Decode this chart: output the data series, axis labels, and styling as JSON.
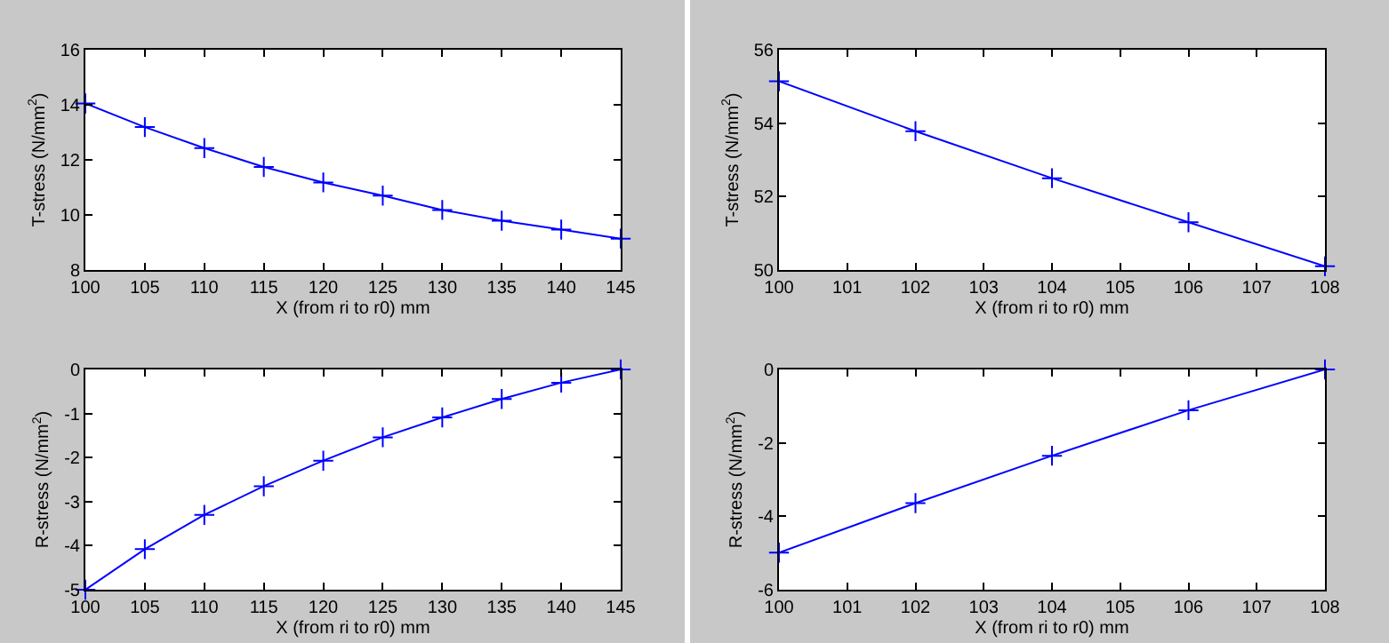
{
  "chart_data": [
    {
      "type": "line",
      "ylabel": "T-stress (N/mm$^{2}$)",
      "xlabel": "X (from ri to r0) mm",
      "x": [
        100,
        105,
        110,
        115,
        120,
        125,
        130,
        135,
        140,
        145
      ],
      "series": [
        {
          "color": "#0000ff",
          "values": [
            14.05,
            13.19,
            12.43,
            11.74,
            11.18,
            10.7,
            10.18,
            9.79,
            9.47,
            9.14
          ]
        }
      ],
      "xlim": [
        100,
        145
      ],
      "xticks": [
        100,
        105,
        110,
        115,
        120,
        125,
        130,
        135,
        140,
        145
      ],
      "ylim": [
        8,
        16
      ],
      "yticks": [
        8,
        10,
        12,
        14,
        16
      ],
      "marker": "cross",
      "line_style": "solid",
      "grid": false
    },
    {
      "type": "line",
      "ylabel": "T-stress (N/mm$^{2}$)",
      "xlabel": "X (from ri to r0) mm",
      "x": [
        100,
        102,
        104,
        106,
        108
      ],
      "series": [
        {
          "color": "#0000ff",
          "values": [
            55.14,
            53.78,
            52.5,
            51.3,
            50.1
          ]
        }
      ],
      "xlim": [
        100,
        108
      ],
      "xticks": [
        100,
        101,
        102,
        103,
        104,
        105,
        106,
        107,
        108
      ],
      "ylim": [
        50,
        56
      ],
      "yticks": [
        50,
        52,
        54,
        56
      ],
      "marker": "cross",
      "line_style": "solid",
      "grid": false
    },
    {
      "type": "line",
      "ylabel": "R-stress (N/mm$^{2}$)",
      "xlabel": "X (from ri to r0) mm",
      "x": [
        100,
        105,
        110,
        115,
        120,
        125,
        130,
        135,
        140,
        145
      ],
      "series": [
        {
          "color": "#0000ff",
          "values": [
            -5,
            -4.08,
            -3.3,
            -2.65,
            -2.07,
            -1.54,
            -1.09,
            -0.67,
            -0.3,
            0
          ]
        }
      ],
      "xlim": [
        100,
        145
      ],
      "xticks": [
        100,
        105,
        110,
        115,
        120,
        125,
        130,
        135,
        140,
        145
      ],
      "ylim": [
        -5,
        0
      ],
      "yticks": [
        -5,
        -4,
        -3,
        -2,
        -1,
        0
      ],
      "marker": "cross",
      "line_style": "solid",
      "grid": false
    },
    {
      "type": "line",
      "ylabel": "R-stress (N/mm$^{2}$)",
      "xlabel": "X (from ri to r0) mm",
      "x": [
        100,
        102,
        104,
        106,
        108
      ],
      "series": [
        {
          "color": "#0000ff",
          "values": [
            -4.99,
            -3.64,
            -2.35,
            -1.11,
            0
          ]
        }
      ],
      "xlim": [
        100,
        108
      ],
      "xticks": [
        100,
        101,
        102,
        103,
        104,
        105,
        106,
        107,
        108
      ],
      "ylim": [
        -6,
        0
      ],
      "yticks": [
        -6,
        -4,
        -2,
        0
      ],
      "marker": "cross",
      "line_style": "solid",
      "grid": false
    }
  ]
}
